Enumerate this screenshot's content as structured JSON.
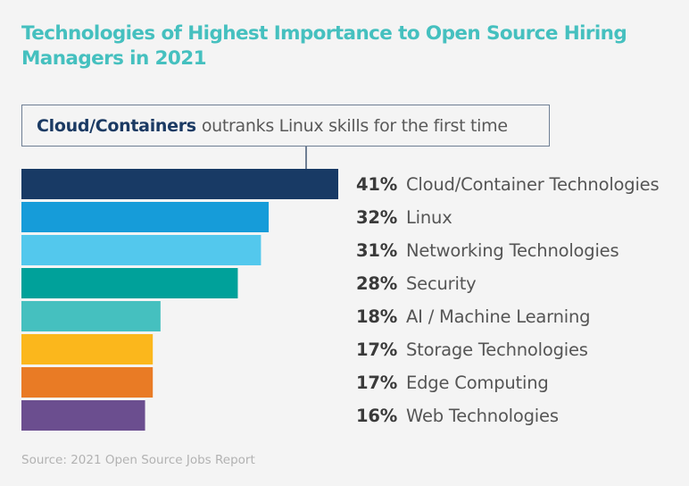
{
  "chart_data": {
    "type": "bar",
    "orientation": "horizontal",
    "title": "Technologies of Highest Importance to Open Source Hiring Managers in 2021",
    "annotation": {
      "bold": "Cloud/Containers",
      "text": "outranks Linux skills for the first time"
    },
    "categories": [
      "Cloud/Container Technologies",
      "Linux",
      "Networking Technologies",
      "Security",
      "AI / Machine Learning",
      "Storage Technologies",
      "Edge Computing",
      "Web Technologies"
    ],
    "values": [
      41,
      32,
      31,
      28,
      18,
      17,
      17,
      16
    ],
    "value_labels": [
      "41%",
      "32%",
      "31%",
      "28%",
      "18%",
      "17%",
      "17%",
      "16%"
    ],
    "colors": [
      "#183a65",
      "#169cd9",
      "#53c8ed",
      "#00a19a",
      "#45c0bf",
      "#fbb71c",
      "#e97b25",
      "#6b4e8f"
    ],
    "unit": "%",
    "xlim": [
      0,
      41
    ],
    "xlabel": "",
    "ylabel": "",
    "grid": false,
    "legend": "none",
    "source": "Source: 2021 Open Source Jobs Report"
  }
}
